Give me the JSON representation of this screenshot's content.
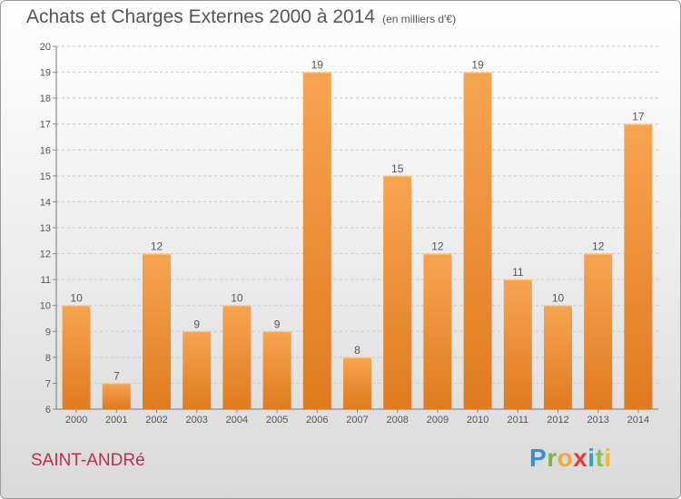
{
  "title": "Achats et Charges Externes 2000 à 2014",
  "unit": "(en milliers d'€)",
  "place": "SAINT-ANDRé",
  "brand": {
    "letters": [
      "P",
      "r",
      "o",
      "x",
      "i",
      "t",
      "i"
    ],
    "colors": [
      "#3a8fd6",
      "#7cb342",
      "#f0a830",
      "#e53935",
      "#2e9fd8",
      "#8bc34a",
      "#f5b82e"
    ]
  },
  "colors": {
    "bar_top": "#f7a450",
    "bar_bottom": "#e07a1e",
    "grid": "#c8c8c8"
  },
  "chart_data": {
    "type": "bar",
    "title": "Achats et Charges Externes 2000 à 2014",
    "categories": [
      "2000",
      "2001",
      "2002",
      "2003",
      "2004",
      "2005",
      "2006",
      "2007",
      "2008",
      "2009",
      "2010",
      "2011",
      "2012",
      "2013",
      "2014"
    ],
    "values": [
      10,
      7,
      12,
      9,
      10,
      9,
      19,
      8,
      15,
      12,
      19,
      11,
      10,
      12,
      17
    ],
    "ylim": [
      6,
      20
    ],
    "yticks": [
      6,
      7,
      8,
      9,
      10,
      11,
      12,
      13,
      14,
      15,
      16,
      17,
      18,
      19,
      20
    ],
    "grid": true
  }
}
